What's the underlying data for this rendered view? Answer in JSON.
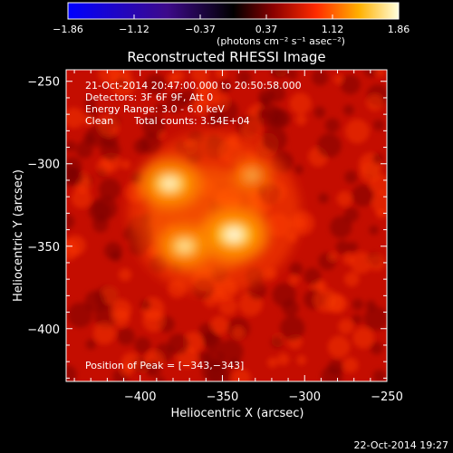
{
  "colorbar": {
    "tick_labels": [
      "-1.86",
      "-1.12",
      "-0.37",
      "0.37",
      "1.12",
      "1.86"
    ],
    "units": "(photons cm⁻² s⁻¹ asec⁻²)",
    "range": [
      -1.86,
      1.86
    ]
  },
  "chart_data": {
    "type": "heatmap",
    "title": "Reconstructed RHESSI Image",
    "xlabel": "Heliocentric X (arcsec)",
    "ylabel": "Heliocentric Y (arcsec)",
    "xlim": [
      -445,
      -250
    ],
    "ylim": [
      -432,
      -243
    ],
    "x_ticks": [
      -400,
      -350,
      -300,
      -250
    ],
    "y_ticks": [
      -250,
      -300,
      -350,
      -400
    ],
    "x_tick_labels": [
      "−400",
      "−350",
      "−300",
      "−250"
    ],
    "y_tick_labels": [
      "−250",
      "−300",
      "−350",
      "−400"
    ],
    "info_lines": [
      "21-Oct-2014 20:47:00.000 to 20:50:58.000",
      "Detectors: 3F 6F 9F, Att 0",
      "Energy Range: 3.0 - 6.0 keV"
    ],
    "clean_label": "Clean",
    "total_counts": "Total counts: 3.54E+04",
    "peak_text": "Position of Peak = [−343,−343]",
    "peak": [
      -343,
      -343
    ],
    "sources": [
      {
        "x": -343,
        "y": -343,
        "intensity": 1.0
      },
      {
        "x": -382,
        "y": -312,
        "intensity": 0.9
      },
      {
        "x": -373,
        "y": -350,
        "intensity": 0.75
      },
      {
        "x": -332,
        "y": -307,
        "intensity": 0.45
      }
    ]
  },
  "footer_date": "22-Oct-2014 19:27"
}
